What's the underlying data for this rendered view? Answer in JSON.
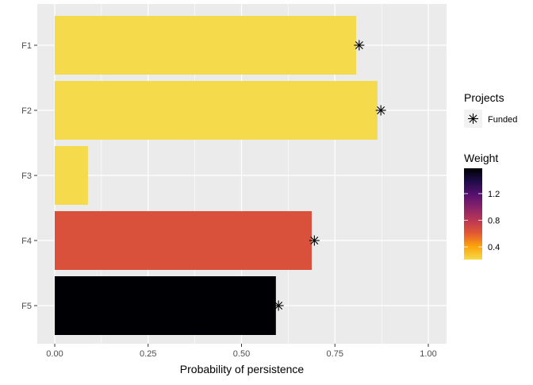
{
  "chart_data": {
    "type": "bar",
    "orientation": "horizontal",
    "categories": [
      "F1",
      "F2",
      "F3",
      "F4",
      "F5"
    ],
    "values": [
      0.807,
      0.864,
      0.089,
      0.688,
      0.592
    ],
    "weights": [
      0.21,
      0.21,
      0.21,
      0.65,
      1.58
    ],
    "funded_points": [
      {
        "category": "F1",
        "x": 0.815
      },
      {
        "category": "F2",
        "x": 0.873
      },
      {
        "category": "F4",
        "x": 0.695
      },
      {
        "category": "F5",
        "x": 0.599
      }
    ],
    "xlabel": "Probability of persistence",
    "ylabel": "",
    "xlim": [
      -0.047,
      1.048
    ],
    "xticks": [
      0.0,
      0.25,
      0.5,
      0.75,
      1.0
    ],
    "xtick_labels": [
      "0.00",
      "0.25",
      "0.50",
      "0.75",
      "1.00"
    ],
    "grid": true,
    "legend": {
      "placement": "right",
      "shape_title": "Projects",
      "shape_label": "Funded",
      "color_title": "Weight",
      "color_range": [
        0.21,
        1.58
      ],
      "color_ticks": [
        0.4,
        0.8,
        1.2
      ],
      "color_tick_labels": [
        "0.4",
        "0.8",
        "1.2"
      ],
      "palette": [
        "#F5DB4B",
        "#FCA50A",
        "#E35932",
        "#BB3754",
        "#89226A",
        "#56106E",
        "#1F0C48",
        "#000004"
      ]
    },
    "panel_color": "#EBEBEB"
  }
}
